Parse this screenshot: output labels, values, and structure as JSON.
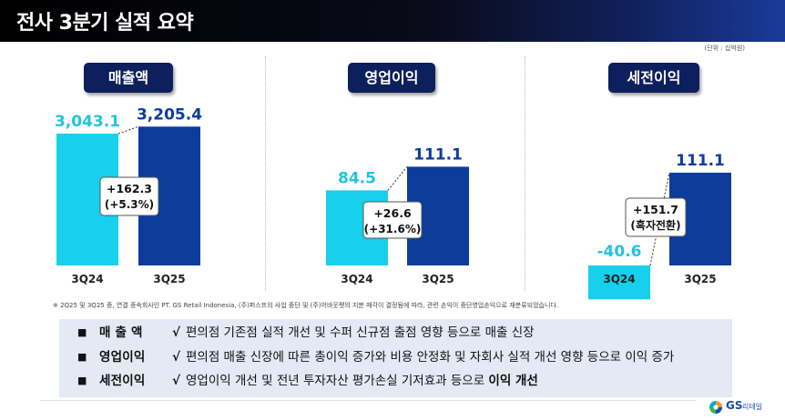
{
  "header": {
    "title": "전사 3분기 실적 요약"
  },
  "unit_note": "(단위 : 십억원)",
  "colors": {
    "prev": "#16d0ec",
    "curr": "#0d3c9a",
    "prev_text": "#23c3e0",
    "curr_text": "#0d3c9a",
    "title_bg": "#0d1f5c"
  },
  "panels": [
    {
      "title": "매출액",
      "categories": [
        "3Q24",
        "3Q25"
      ],
      "value_labels": [
        "3,043.1",
        "3,205.4"
      ],
      "delta_line1": "+162.3",
      "delta_line2": "(+5.3%)"
    },
    {
      "title": "영업이익",
      "categories": [
        "3Q24",
        "3Q25"
      ],
      "value_labels": [
        "84.5",
        "111.1"
      ],
      "delta_line1": "+26.6",
      "delta_line2": "(+31.6%)"
    },
    {
      "title": "세전이익",
      "categories": [
        "3Q24",
        "3Q25"
      ],
      "value_labels": [
        "-40.6",
        "111.1"
      ],
      "delta_line1": "+151.7",
      "delta_line2": "(흑자전환)"
    }
  ],
  "chart_data": [
    {
      "type": "bar",
      "title": "매출액",
      "categories": [
        "3Q24",
        "3Q25"
      ],
      "values": [
        3043.1,
        3205.4
      ],
      "ylim": [
        0,
        3400
      ],
      "unit": "십억원",
      "annotation": "+162.3 (+5.3%)"
    },
    {
      "type": "bar",
      "title": "영업이익",
      "categories": [
        "3Q24",
        "3Q25"
      ],
      "values": [
        84.5,
        111.1
      ],
      "ylim": [
        0,
        135
      ],
      "unit": "십억원",
      "annotation": "+26.6 (+31.6%)"
    },
    {
      "type": "bar",
      "title": "세전이익",
      "categories": [
        "3Q24",
        "3Q25"
      ],
      "values": [
        -40.6,
        111.1
      ],
      "ylim": [
        -45,
        135
      ],
      "unit": "십억원",
      "annotation": "+151.7 (흑자전환)"
    }
  ],
  "footnote": "※ 2Q25 및 3Q25 중, 연결 종속회사인 PT. GS Retail Indonesia, (주)퍼스프의 사업 중단 및 (주)어바웃펫의 지분 매각이 결정됨에 따라, 관련 손익이 중단영업손익으로 재분류되었습니다.",
  "summary": [
    {
      "bullet": "■",
      "label": "매 출 액",
      "check": "√",
      "text": "편의점 기존점 실적 개선 및 수퍼 신규점 출점 영향 등으로 매출 신장",
      "bold": ""
    },
    {
      "bullet": "■",
      "label": "영업이익",
      "check": "√",
      "text": "편의점 매출 신장에 따른 총이익 증가와 비용 안정화 및 자회사 실적 개선 영향 등으로 이익 증가",
      "bold": ""
    },
    {
      "bullet": "■",
      "label": "세전이익",
      "check": "√",
      "text": "영업이익 개선 및 전년 투자자산 평가손실 기저효과 등으로 ",
      "bold": "이익 개선"
    }
  ],
  "logo": {
    "brand": "GS",
    "name": "리테일"
  }
}
